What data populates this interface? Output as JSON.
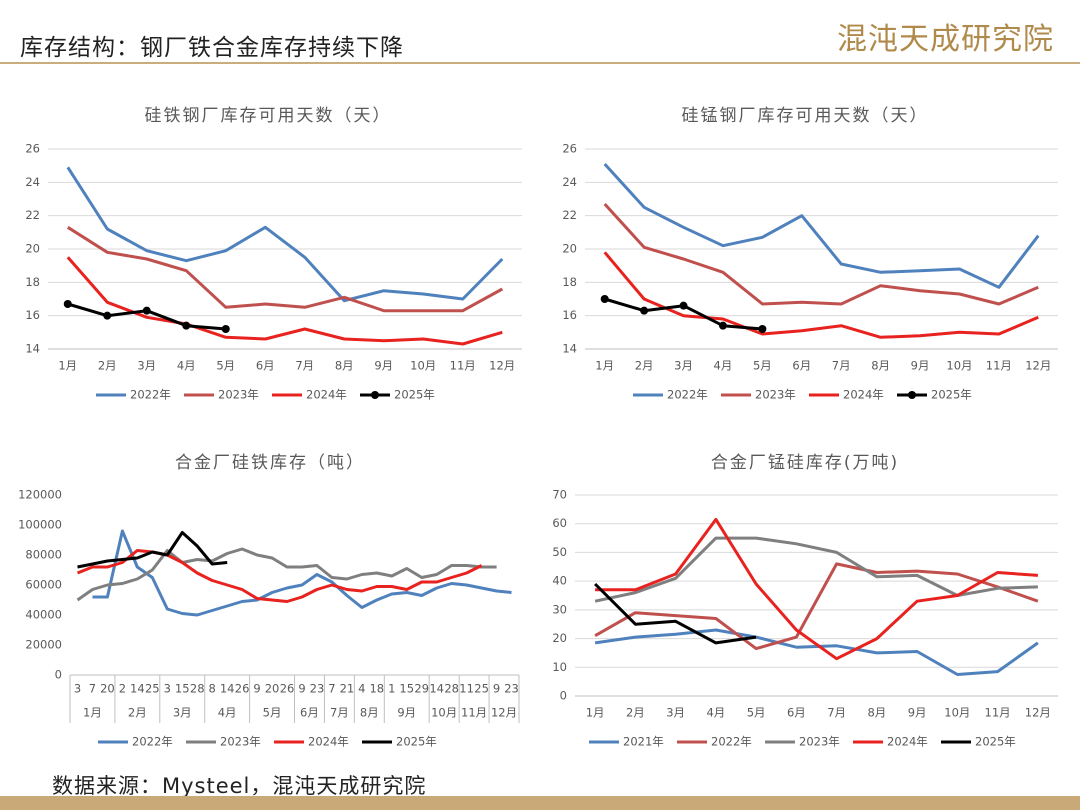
{
  "header": {
    "title": "库存结构：钢厂铁合金库存持续下降",
    "logo": "混沌天成研究院"
  },
  "footer": {
    "source": "数据来源：Mysteel，混沌天成研究院"
  },
  "chart_data": [
    {
      "type": "line",
      "title": "硅铁钢厂库存可用天数（天）",
      "grid": true,
      "categories": [
        "1月",
        "2月",
        "3月",
        "4月",
        "5月",
        "6月",
        "7月",
        "8月",
        "9月",
        "10月",
        "11月",
        "12月"
      ],
      "ylim": [
        14,
        26
      ],
      "yticks": [
        14,
        16,
        18,
        20,
        22,
        24,
        26
      ],
      "series": [
        {
          "name": "2022年",
          "color": "#4f81bd",
          "values": [
            24.9,
            21.2,
            19.9,
            19.3,
            19.9,
            21.3,
            19.5,
            16.9,
            17.5,
            17.3,
            17.0,
            19.4
          ]
        },
        {
          "name": "2023年",
          "color": "#c0504d",
          "values": [
            21.3,
            19.8,
            19.4,
            18.7,
            16.5,
            16.7,
            16.5,
            17.1,
            16.3,
            16.3,
            16.3,
            17.6
          ]
        },
        {
          "name": "2024年",
          "color": "#e8221f",
          "values": [
            19.5,
            16.8,
            15.9,
            15.5,
            14.7,
            14.6,
            15.2,
            14.6,
            14.5,
            14.6,
            14.3,
            15.0
          ]
        },
        {
          "name": "2025年",
          "color": "#000000",
          "markers": true,
          "values": [
            16.7,
            16.0,
            16.3,
            15.4,
            15.2,
            null,
            null,
            null,
            null,
            null,
            null,
            null
          ]
        }
      ]
    },
    {
      "type": "line",
      "title": "硅锰钢厂库存可用天数（天）",
      "grid": true,
      "categories": [
        "1月",
        "2月",
        "3月",
        "4月",
        "5月",
        "6月",
        "7月",
        "8月",
        "9月",
        "10月",
        "11月",
        "12月"
      ],
      "ylim": [
        14,
        26
      ],
      "yticks": [
        14,
        16,
        18,
        20,
        22,
        24,
        26
      ],
      "series": [
        {
          "name": "2022年",
          "color": "#4f81bd",
          "values": [
            25.1,
            22.5,
            21.3,
            20.2,
            20.7,
            22.0,
            19.1,
            18.6,
            18.7,
            18.8,
            17.7,
            20.8
          ]
        },
        {
          "name": "2023年",
          "color": "#c0504d",
          "values": [
            22.7,
            20.1,
            19.4,
            18.6,
            16.7,
            16.8,
            16.7,
            17.8,
            17.5,
            17.3,
            16.7,
            17.7
          ]
        },
        {
          "name": "2024年",
          "color": "#e8221f",
          "values": [
            19.8,
            17.0,
            16.0,
            15.8,
            14.9,
            15.1,
            15.4,
            14.7,
            14.8,
            15.0,
            14.9,
            15.9
          ]
        },
        {
          "name": "2025年",
          "color": "#000000",
          "markers": true,
          "values": [
            17.0,
            16.3,
            16.6,
            15.4,
            15.2,
            null,
            null,
            null,
            null,
            null,
            null,
            null
          ]
        }
      ]
    },
    {
      "type": "line",
      "title": "合金厂硅铁库存（吨）",
      "grid": false,
      "categories": [
        "3",
        "7",
        "20",
        "2",
        "14",
        "25",
        "3",
        "15",
        "28",
        "8",
        "14",
        "26",
        "9",
        "20",
        "26",
        "9",
        "23",
        "7",
        "21",
        "4",
        "18",
        "1",
        "15",
        "29",
        "14",
        "28",
        "11",
        "25",
        "9",
        "23"
      ],
      "x_groups": [
        {
          "label": "1月",
          "span": 3
        },
        {
          "label": "2月",
          "span": 3
        },
        {
          "label": "3月",
          "span": 3
        },
        {
          "label": "4月",
          "span": 3
        },
        {
          "label": "5月",
          "span": 3
        },
        {
          "label": "6月",
          "span": 2
        },
        {
          "label": "7月",
          "span": 2
        },
        {
          "label": "8月",
          "span": 2
        },
        {
          "label": "9月",
          "span": 3
        },
        {
          "label": "10月",
          "span": 2
        },
        {
          "label": "11月",
          "span": 2
        },
        {
          "label": "12月",
          "span": 2
        }
      ],
      "ylim": [
        0,
        120000
      ],
      "yticks": [
        0,
        20000,
        40000,
        60000,
        80000,
        100000,
        120000
      ],
      "series": [
        {
          "name": "2022年",
          "color": "#4f81bd",
          "values": [
            null,
            52000,
            52000,
            96000,
            72000,
            65000,
            44000,
            41000,
            40000,
            43000,
            46000,
            49000,
            50000,
            55000,
            58000,
            60000,
            67000,
            62000,
            53000,
            45000,
            50000,
            54000,
            55000,
            53000,
            58000,
            61000,
            60000,
            58000,
            56000,
            55000
          ]
        },
        {
          "name": "2023年",
          "color": "#7f7f7f",
          "values": [
            50000,
            57000,
            60000,
            61000,
            64000,
            70000,
            83000,
            75000,
            77000,
            76000,
            81000,
            84000,
            80000,
            78000,
            72000,
            72000,
            73000,
            65000,
            64000,
            67000,
            68000,
            66000,
            71000,
            65000,
            67000,
            73000,
            73000,
            72000,
            72000,
            null
          ]
        },
        {
          "name": "2024年",
          "color": "#e8221f",
          "values": [
            68000,
            72000,
            72000,
            75000,
            83000,
            82000,
            80000,
            75000,
            68000,
            63000,
            60000,
            57000,
            51000,
            50000,
            49000,
            52000,
            57000,
            60000,
            57000,
            56000,
            59000,
            59000,
            57000,
            62000,
            62000,
            65000,
            68000,
            73000,
            null,
            null
          ]
        },
        {
          "name": "2025年",
          "color": "#000000",
          "values": [
            72000,
            74000,
            76000,
            77000,
            78000,
            82000,
            80000,
            95000,
            86000,
            74000,
            75000,
            null,
            null,
            null,
            null,
            null,
            null,
            null,
            null,
            null,
            null,
            null,
            null,
            null,
            null,
            null,
            null,
            null,
            null,
            null
          ]
        }
      ]
    },
    {
      "type": "line",
      "title": "合金厂锰硅库存(万吨)",
      "grid": true,
      "categories": [
        "1月",
        "2月",
        "3月",
        "4月",
        "5月",
        "6月",
        "7月",
        "8月",
        "9月",
        "10月",
        "11月",
        "12月"
      ],
      "ylim": [
        0,
        70
      ],
      "yticks": [
        0,
        10,
        20,
        30,
        40,
        50,
        60,
        70
      ],
      "series": [
        {
          "name": "2021年",
          "color": "#4f81bd",
          "values": [
            18.5,
            20.5,
            21.5,
            23,
            20.5,
            17,
            17.5,
            15,
            15.5,
            7.5,
            8.5,
            18.5
          ]
        },
        {
          "name": "2022年",
          "color": "#c0504d",
          "values": [
            21,
            29,
            28,
            27,
            16.5,
            20.5,
            46,
            43,
            43.5,
            42.5,
            38,
            33
          ]
        },
        {
          "name": "2023年",
          "color": "#7f7f7f",
          "values": [
            33,
            36,
            41,
            55,
            55,
            53,
            50,
            41.5,
            42,
            35,
            37.5,
            38
          ]
        },
        {
          "name": "2024年",
          "color": "#e8221f",
          "values": [
            37,
            37,
            42.5,
            61.5,
            39,
            23,
            13,
            20,
            33,
            35,
            43,
            42
          ]
        },
        {
          "name": "2025年",
          "color": "#000000",
          "values": [
            39,
            25,
            26,
            18.5,
            20.5,
            null,
            null,
            null,
            null,
            null,
            null,
            null
          ]
        }
      ]
    }
  ]
}
